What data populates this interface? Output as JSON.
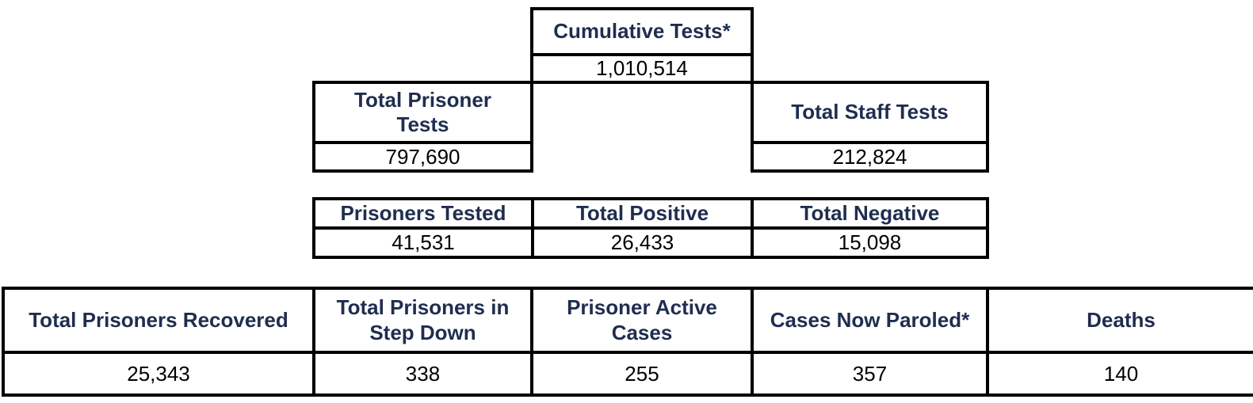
{
  "cumulative": {
    "label": "Cumulative Tests*",
    "value": "1,010,514"
  },
  "prisoner_tests": {
    "label": "Total Prisoner Tests",
    "value": "797,690"
  },
  "staff_tests": {
    "label": "Total Staff Tests",
    "value": "212,824"
  },
  "middle": {
    "headers": [
      "Prisoners Tested",
      "Total Positive",
      "Total Negative"
    ],
    "values": [
      "41,531",
      "26,433",
      "15,098"
    ]
  },
  "bottom": {
    "headers": [
      "Total Prisoners Recovered",
      "Total Prisoners in Step Down",
      "Prisoner Active Cases",
      "Cases Now Paroled*",
      "Deaths"
    ],
    "values": [
      "25,343",
      "338",
      "255",
      "357",
      "140"
    ]
  },
  "colors": {
    "header_text": "#1f2d4f",
    "border": "#000000"
  }
}
